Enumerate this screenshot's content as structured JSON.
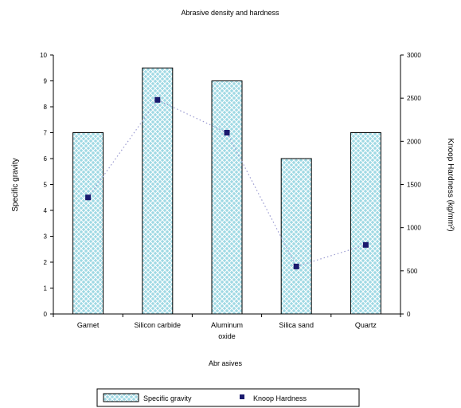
{
  "chart_data": {
    "type": "bar",
    "title": "Abrasive density and hardness",
    "xlabel": "Abr asives",
    "ylabel": "Specific gravity",
    "y2label": "Knoop Hardness (kg/mm²)",
    "categories": [
      [
        "Garnet"
      ],
      [
        "Silicon carbide"
      ],
      [
        "Aluminum",
        "oxide"
      ],
      [
        "Silica sand"
      ],
      [
        "Quartz"
      ]
    ],
    "series": [
      {
        "name": "Specific gravity",
        "kind": "bar",
        "axis": "left",
        "values": [
          7,
          9.5,
          9,
          6,
          7
        ]
      },
      {
        "name": "Knoop Hardness",
        "kind": "marker",
        "axis": "right",
        "values": [
          1350,
          2480,
          2100,
          550,
          800
        ]
      }
    ],
    "ylim": [
      0,
      10
    ],
    "yticks": [
      0,
      1,
      2,
      3,
      4,
      5,
      6,
      7,
      8,
      9,
      10
    ],
    "y2lim": [
      0,
      3000
    ],
    "y2ticks": [
      0,
      500,
      1000,
      1500,
      2000,
      2500,
      3000
    ],
    "grid": false,
    "legend_position": "bottom",
    "colors": {
      "bar_fill": "#9fd9e4",
      "bar_hatch": "#ffffff",
      "bar_stroke": "#000000",
      "marker": "#1a1a6e",
      "dotted_line": "#9a9ad0"
    }
  }
}
